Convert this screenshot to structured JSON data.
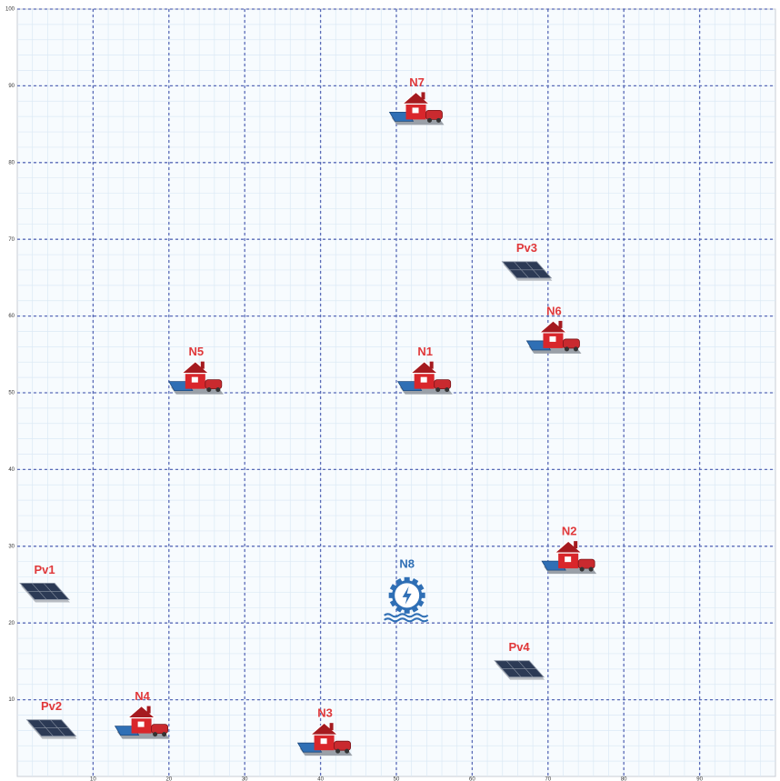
{
  "chart_data": {
    "type": "nodes",
    "xlim": [
      0,
      100
    ],
    "ylim": [
      0,
      100
    ],
    "xticks": [
      10,
      20,
      30,
      40,
      50,
      60,
      70,
      80,
      90
    ],
    "yticks": [
      10,
      20,
      30,
      40,
      50,
      60,
      70,
      80,
      90,
      100
    ],
    "grid": true,
    "nodes": [
      {
        "label": "N7",
        "x": 52.7,
        "y": 86.8,
        "icon": "house"
      },
      {
        "label": "Pv3",
        "x": 67.2,
        "y": 65.9,
        "icon": "pv"
      },
      {
        "label": "N6",
        "x": 70.8,
        "y": 57,
        "icon": "house"
      },
      {
        "label": "N5",
        "x": 23.6,
        "y": 51.7,
        "icon": "house"
      },
      {
        "label": "N1",
        "x": 53.8,
        "y": 51.7,
        "icon": "house"
      },
      {
        "label": "N2",
        "x": 72.8,
        "y": 28.3,
        "icon": "house"
      },
      {
        "label": "N8",
        "x": 51.4,
        "y": 23.6,
        "icon": "hydro"
      },
      {
        "label": "Pv1",
        "x": 3.6,
        "y": 24,
        "icon": "pv"
      },
      {
        "label": "Pv4",
        "x": 66.2,
        "y": 13.9,
        "icon": "pv"
      },
      {
        "label": "Pv2",
        "x": 4.5,
        "y": 6.2,
        "icon": "pv"
      },
      {
        "label": "N4",
        "x": 16.5,
        "y": 6.8,
        "icon": "house"
      },
      {
        "label": "N3",
        "x": 40.6,
        "y": 4.6,
        "icon": "house"
      }
    ]
  }
}
